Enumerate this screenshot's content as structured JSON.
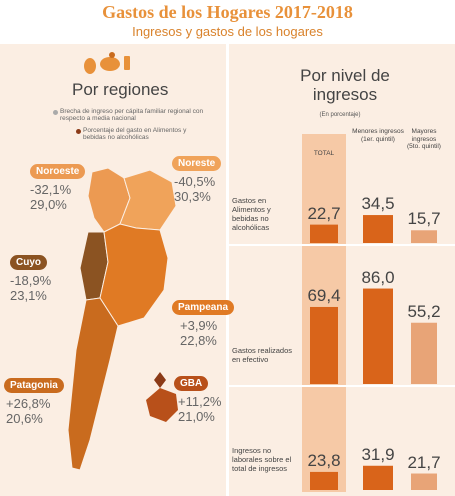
{
  "title": "Gastos de los Hogares 2017-2018",
  "subtitle": "Ingresos y gastos de los hogares",
  "left_panel": {
    "heading": "Por regiones",
    "legend_gap": "Brecha de ingreso per cápita familiar regional con respecto a media nacional",
    "legend_food": "Porcentaje del gasto en Alimentos y bebidas no alcohólicas",
    "regions": [
      {
        "name": "Noroeste",
        "gap": "-32,1%",
        "food": "29,0%"
      },
      {
        "name": "Noreste",
        "gap": "-40,5%",
        "food": "30,3%"
      },
      {
        "name": "Cuyo",
        "gap": "-18,9%",
        "food": "23,1%"
      },
      {
        "name": "Pampeana",
        "gap": "+3,9%",
        "food": "22,8%"
      },
      {
        "name": "GBA",
        "gap": "+11,2%",
        "food": "21,0%"
      },
      {
        "name": "Patagonia",
        "gap": "+26,8%",
        "food": "20,6%"
      }
    ]
  },
  "right_panel": {
    "heading": "Por nivel de ingresos",
    "unit_note": "(En porcentaje)"
  },
  "colors": {
    "title": "#e8913a",
    "panel_bg": "#fbeee3",
    "bar_dark": "#d9641a",
    "bar_light": "#e8a477",
    "total_col_bg": "#f6c9a6",
    "gap_dot": "#aaaaaa",
    "food_dot": "#8b3a17",
    "map_noroeste": "#ec9a52",
    "map_noreste": "#f0a35a",
    "map_cuyo": "#8b5322",
    "map_pampeana": "#e07a24",
    "map_patagonia": "#c96b1e",
    "map_gba": "#b8501a"
  },
  "chart_data": {
    "type": "bar",
    "categories": [
      "TOTAL",
      "Menores ingresos (1er. quintil)",
      "Mayores ingresos (5to. quintil)"
    ],
    "groups": [
      {
        "label": "Gastos en Alimentos y bebidas no alcohólicas",
        "values": [
          22.7,
          34.5,
          15.7
        ],
        "labels": [
          "22,7",
          "34,5",
          "15,7"
        ]
      },
      {
        "label": "Gastos realizados en efectivo",
        "values": [
          69.4,
          86.0,
          55.2
        ],
        "labels": [
          "69,4",
          "86,0",
          "55,2"
        ]
      },
      {
        "label": "Ingresos no laborales sobre el total de ingresos",
        "values": [
          23.8,
          31.9,
          21.7
        ],
        "labels": [
          "23,8",
          "31,9",
          "21,7"
        ]
      }
    ],
    "ylim": [
      0,
      100
    ],
    "title": "Por nivel de ingresos",
    "unit_note": "(En porcentaje)"
  }
}
